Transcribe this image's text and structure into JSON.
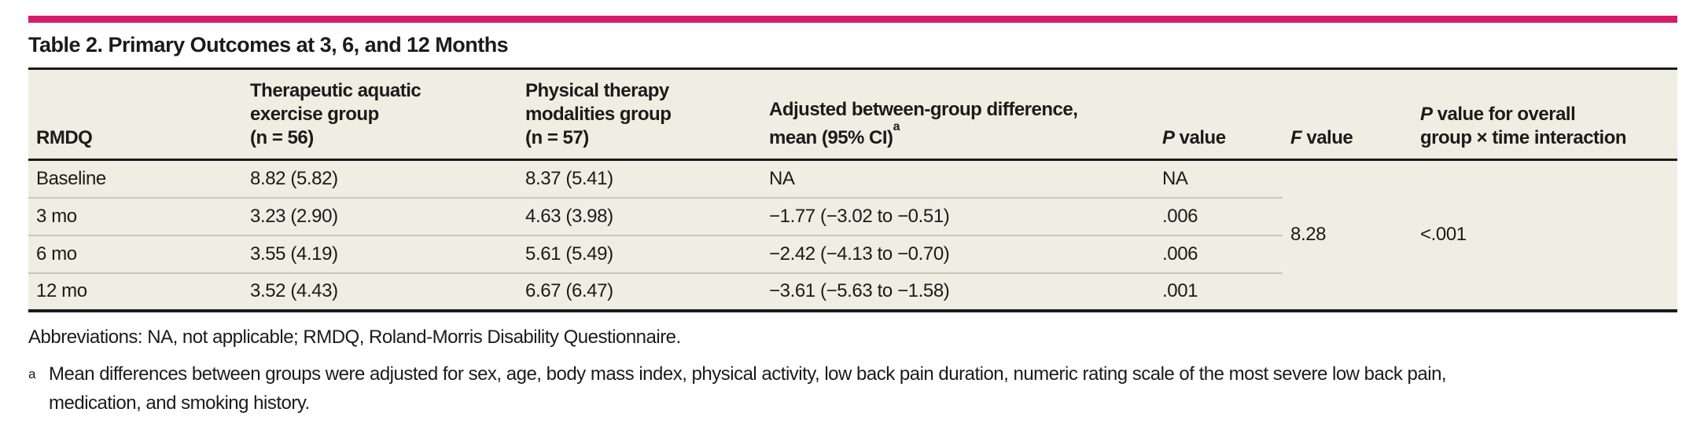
{
  "colors": {
    "accent": "#d41e68",
    "table_background": "#efeee2",
    "dark_rule": "#1a1a1a",
    "row_separator": "#c9c8ba"
  },
  "title": "Table 2. Primary Outcomes at 3, 6, and 12 Months",
  "table": {
    "headers": {
      "rmdq": "RMDQ",
      "aquatic_lines": [
        "Therapeutic aquatic",
        "exercise group",
        "(n = 56)"
      ],
      "pt_lines": [
        "Physical therapy",
        "modalities group",
        "(n = 57)"
      ],
      "diff_line1": "Adjusted between-group difference,",
      "diff_line2": "mean (95% CI)",
      "diff_footnote_marker": "a",
      "p": {
        "italic": "P",
        "rest": " value"
      },
      "f": {
        "italic": "F",
        "rest": " value"
      },
      "interaction": {
        "italic": "P",
        "rest": " value for overall",
        "line2": "group × time interaction"
      }
    },
    "rows": [
      {
        "label": "Baseline",
        "aquatic": "8.82 (5.82)",
        "pt": "8.37 (5.41)",
        "diff": "NA",
        "p": "NA"
      },
      {
        "label": "3 mo",
        "aquatic": "3.23 (2.90)",
        "pt": "4.63 (3.98)",
        "diff": "−1.77 (−3.02 to −0.51)",
        "p": ".006"
      },
      {
        "label": "6 mo",
        "aquatic": "3.55 (4.19)",
        "pt": "5.61 (5.49)",
        "diff": "−2.42 (−4.13 to −0.70)",
        "p": ".006"
      },
      {
        "label": "12 mo",
        "aquatic": "3.52 (4.43)",
        "pt": "6.67 (6.47)",
        "diff": "−3.61 (−5.63 to −1.58)",
        "p": ".001"
      }
    ],
    "f_value": "8.28",
    "interaction_p_value": "<.001"
  },
  "footnotes": {
    "abbreviations": "Abbreviations: NA, not applicable; RMDQ, Roland-Morris Disability Questionnaire.",
    "a_marker": "a",
    "a_line1": "Mean differences between groups were adjusted for sex, age, body mass index, physical activity, low back pain duration, numeric rating scale of the most severe low back pain,",
    "a_line2": "medication, and smoking history."
  }
}
